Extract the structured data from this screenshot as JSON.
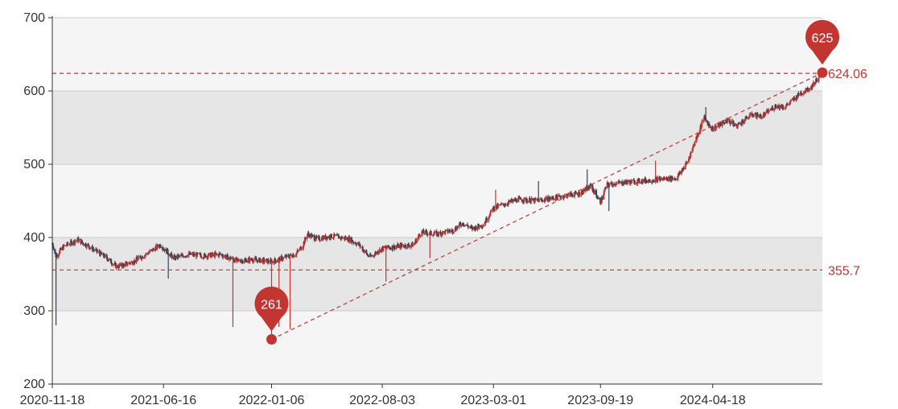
{
  "chart_data": {
    "type": "candlestick",
    "title": "",
    "xlabel": "",
    "ylabel": "",
    "ylim": [
      200,
      700
    ],
    "y_ticks": [
      200,
      300,
      400,
      500,
      600,
      700
    ],
    "x_tick_labels": [
      "2020-11-18",
      "2021-06-16",
      "2022-01-06",
      "2022-08-03",
      "2023-03-01",
      "2023-09-19",
      "2024-04-18"
    ],
    "x_range": [
      "2020-11-18",
      "2024-11-11"
    ],
    "grid": true,
    "band_fills": [
      "#f5f5f5",
      "#e6e6e6"
    ],
    "colors": {
      "up": "#c23531",
      "down": "#314656",
      "mark": "#c23531",
      "axis": "#333333",
      "gridline": "#cccccc"
    },
    "mark_lines": [
      {
        "label": "624.06",
        "value": 624.06
      },
      {
        "label": "355.7",
        "value": 355.7
      }
    ],
    "trend_line": {
      "from": [
        "2022-01-06",
        261
      ],
      "to": [
        "2024-11-11",
        625
      ]
    },
    "mark_points": [
      {
        "label": "261",
        "date": "2022-01-06",
        "value": 261
      },
      {
        "label": "625",
        "date": "2024-11-11",
        "value": 625
      }
    ],
    "price_path": [
      [
        "2020-11-18",
        392
      ],
      [
        "2020-11-25",
        375
      ],
      [
        "2020-12-10",
        388
      ],
      [
        "2021-01-05",
        397
      ],
      [
        "2021-02-01",
        385
      ],
      [
        "2021-03-01",
        372
      ],
      [
        "2021-03-20",
        360
      ],
      [
        "2021-04-20",
        367
      ],
      [
        "2021-05-20",
        380
      ],
      [
        "2021-06-10",
        390
      ],
      [
        "2021-07-05",
        372
      ],
      [
        "2021-08-01",
        377
      ],
      [
        "2021-09-01",
        375
      ],
      [
        "2021-10-01",
        377
      ],
      [
        "2021-11-01",
        368
      ],
      [
        "2021-12-01",
        370
      ],
      [
        "2022-01-06",
        367
      ],
      [
        "2022-02-01",
        373
      ],
      [
        "2022-02-20",
        377
      ],
      [
        "2022-03-05",
        388
      ],
      [
        "2022-03-15",
        405
      ],
      [
        "2022-04-01",
        398
      ],
      [
        "2022-05-01",
        402
      ],
      [
        "2022-06-01",
        398
      ],
      [
        "2022-06-20",
        390
      ],
      [
        "2022-07-10",
        373
      ],
      [
        "2022-08-03",
        385
      ],
      [
        "2022-09-01",
        388
      ],
      [
        "2022-10-01",
        390
      ],
      [
        "2022-10-15",
        407
      ],
      [
        "2022-11-15",
        405
      ],
      [
        "2022-12-15",
        410
      ],
      [
        "2023-01-01",
        420
      ],
      [
        "2023-01-20",
        412
      ],
      [
        "2023-02-10",
        418
      ],
      [
        "2023-03-01",
        440
      ],
      [
        "2023-03-20",
        445
      ],
      [
        "2023-04-15",
        452
      ],
      [
        "2023-05-20",
        450
      ],
      [
        "2023-07-01",
        455
      ],
      [
        "2023-07-20",
        458
      ],
      [
        "2023-08-10",
        460
      ],
      [
        "2023-09-01",
        470
      ],
      [
        "2023-09-19",
        448
      ],
      [
        "2023-10-01",
        472
      ],
      [
        "2023-11-01",
        475
      ],
      [
        "2023-12-01",
        477
      ],
      [
        "2024-01-15",
        480
      ],
      [
        "2024-02-10",
        481
      ],
      [
        "2024-03-01",
        503
      ],
      [
        "2024-03-15",
        530
      ],
      [
        "2024-04-01",
        563
      ],
      [
        "2024-04-18",
        548
      ],
      [
        "2024-05-15",
        560
      ],
      [
        "2024-06-01",
        552
      ],
      [
        "2024-07-01",
        568
      ],
      [
        "2024-07-20",
        565
      ],
      [
        "2024-08-15",
        580
      ],
      [
        "2024-09-01",
        578
      ],
      [
        "2024-10-01",
        597
      ],
      [
        "2024-10-20",
        605
      ],
      [
        "2024-11-11",
        625
      ]
    ],
    "spikes": [
      [
        "2020-11-25",
        280,
        "down"
      ],
      [
        "2021-06-25",
        344,
        "down"
      ],
      [
        "2021-10-25",
        278,
        "up"
      ],
      [
        "2022-01-06",
        261,
        "up"
      ],
      [
        "2022-01-20",
        278,
        "up"
      ],
      [
        "2022-02-10",
        275,
        "up"
      ],
      [
        "2022-08-10",
        340,
        "up"
      ],
      [
        "2022-11-01",
        372,
        "up"
      ],
      [
        "2023-03-05",
        465,
        "up"
      ],
      [
        "2023-05-25",
        477,
        "down"
      ],
      [
        "2023-08-25",
        493,
        "down"
      ],
      [
        "2023-10-05",
        436,
        "down"
      ],
      [
        "2024-01-01",
        505,
        "up"
      ],
      [
        "2024-04-05",
        578,
        "down"
      ],
      [
        "2024-05-25",
        562,
        "up"
      ]
    ]
  }
}
